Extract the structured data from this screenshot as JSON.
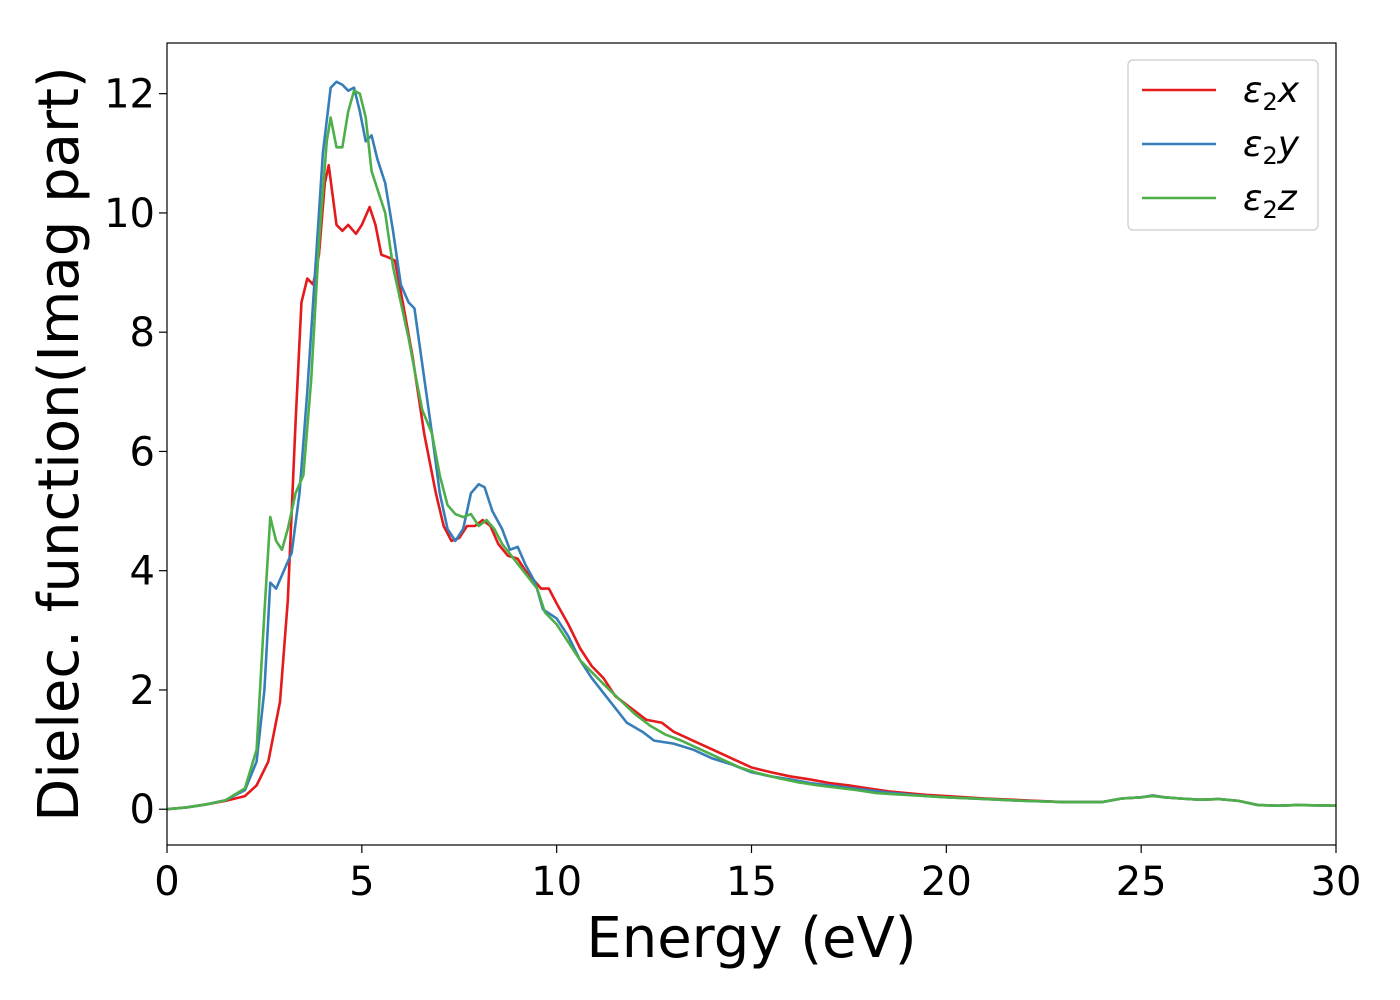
{
  "chart_data": {
    "type": "line",
    "title": "",
    "xlabel": "Energy (eV)",
    "ylabel": "Dielec. function(Imag part)",
    "xlim": [
      0,
      30
    ],
    "ylim": [
      -0.6,
      12.85
    ],
    "xticks": [
      0,
      5,
      10,
      15,
      20,
      25,
      30
    ],
    "xtick_labels": [
      "0",
      "5",
      "10",
      "15",
      "20",
      "25",
      "30"
    ],
    "yticks": [
      0,
      2,
      4,
      6,
      8,
      10,
      12
    ],
    "ytick_labels": [
      "0",
      "2",
      "4",
      "6",
      "8",
      "10",
      "12"
    ],
    "grid": false,
    "legend": {
      "position": "top-right",
      "entries": [
        {
          "symbol": "ε",
          "sub": "2",
          "comp": "x",
          "color": "#e41a1c"
        },
        {
          "symbol": "ε",
          "sub": "2",
          "comp": "y",
          "color": "#377eb8"
        },
        {
          "symbol": "ε",
          "sub": "2",
          "comp": "z",
          "color": "#4daf4a"
        }
      ]
    },
    "series": [
      {
        "color": "#e41a1c",
        "points": [
          [
            0,
            0
          ],
          [
            0.5,
            0.03
          ],
          [
            1,
            0.08
          ],
          [
            1.5,
            0.14
          ],
          [
            2,
            0.22
          ],
          [
            2.3,
            0.4
          ],
          [
            2.6,
            0.8
          ],
          [
            2.9,
            1.8
          ],
          [
            3.1,
            3.5
          ],
          [
            3.3,
            6.5
          ],
          [
            3.45,
            8.5
          ],
          [
            3.6,
            8.9
          ],
          [
            3.75,
            8.8
          ],
          [
            3.9,
            9.3
          ],
          [
            4.05,
            10.5
          ],
          [
            4.15,
            10.8
          ],
          [
            4.25,
            10.3
          ],
          [
            4.35,
            9.8
          ],
          [
            4.5,
            9.7
          ],
          [
            4.65,
            9.8
          ],
          [
            4.85,
            9.65
          ],
          [
            5.0,
            9.8
          ],
          [
            5.2,
            10.1
          ],
          [
            5.35,
            9.8
          ],
          [
            5.5,
            9.3
          ],
          [
            5.7,
            9.25
          ],
          [
            5.85,
            9.2
          ],
          [
            6.05,
            8.5
          ],
          [
            6.3,
            7.6
          ],
          [
            6.6,
            6.3
          ],
          [
            6.9,
            5.3
          ],
          [
            7.1,
            4.75
          ],
          [
            7.3,
            4.5
          ],
          [
            7.5,
            4.55
          ],
          [
            7.7,
            4.75
          ],
          [
            7.9,
            4.75
          ],
          [
            8.1,
            4.85
          ],
          [
            8.3,
            4.75
          ],
          [
            8.5,
            4.45
          ],
          [
            8.75,
            4.25
          ],
          [
            9.0,
            4.2
          ],
          [
            9.2,
            4.0
          ],
          [
            9.4,
            3.85
          ],
          [
            9.6,
            3.7
          ],
          [
            9.8,
            3.7
          ],
          [
            10.0,
            3.45
          ],
          [
            10.3,
            3.1
          ],
          [
            10.6,
            2.7
          ],
          [
            10.9,
            2.4
          ],
          [
            11.2,
            2.2
          ],
          [
            11.5,
            1.9
          ],
          [
            11.9,
            1.7
          ],
          [
            12.3,
            1.5
          ],
          [
            12.7,
            1.45
          ],
          [
            13.0,
            1.3
          ],
          [
            13.5,
            1.15
          ],
          [
            14.0,
            1.0
          ],
          [
            14.5,
            0.85
          ],
          [
            15.0,
            0.7
          ],
          [
            15.5,
            0.62
          ],
          [
            16.0,
            0.55
          ],
          [
            16.5,
            0.5
          ],
          [
            17.0,
            0.44
          ],
          [
            17.5,
            0.4
          ],
          [
            18.0,
            0.35
          ],
          [
            18.5,
            0.3
          ],
          [
            19.0,
            0.27
          ],
          [
            19.5,
            0.24
          ],
          [
            20.0,
            0.22
          ],
          [
            21.0,
            0.18
          ],
          [
            22.0,
            0.15
          ],
          [
            23.0,
            0.12
          ],
          [
            24.0,
            0.12
          ],
          [
            24.5,
            0.18
          ],
          [
            25.0,
            0.2
          ],
          [
            25.3,
            0.23
          ],
          [
            25.6,
            0.2
          ],
          [
            26.0,
            0.18
          ],
          [
            26.5,
            0.16
          ],
          [
            27.0,
            0.17
          ],
          [
            27.5,
            0.14
          ],
          [
            28.0,
            0.07
          ],
          [
            28.5,
            0.06
          ],
          [
            29.0,
            0.07
          ],
          [
            30.0,
            0.06
          ]
        ]
      },
      {
        "color": "#377eb8",
        "points": [
          [
            0,
            0
          ],
          [
            0.5,
            0.03
          ],
          [
            1,
            0.08
          ],
          [
            1.5,
            0.15
          ],
          [
            2,
            0.32
          ],
          [
            2.3,
            0.8
          ],
          [
            2.5,
            2.0
          ],
          [
            2.65,
            3.8
          ],
          [
            2.8,
            3.7
          ],
          [
            3.0,
            4.0
          ],
          [
            3.2,
            4.3
          ],
          [
            3.4,
            5.3
          ],
          [
            3.6,
            7.0
          ],
          [
            3.8,
            9.0
          ],
          [
            4.0,
            11.0
          ],
          [
            4.2,
            12.1
          ],
          [
            4.35,
            12.2
          ],
          [
            4.5,
            12.15
          ],
          [
            4.65,
            12.05
          ],
          [
            4.8,
            12.1
          ],
          [
            4.95,
            11.7
          ],
          [
            5.1,
            11.2
          ],
          [
            5.25,
            11.3
          ],
          [
            5.4,
            10.9
          ],
          [
            5.6,
            10.5
          ],
          [
            5.8,
            9.7
          ],
          [
            6.0,
            8.8
          ],
          [
            6.2,
            8.5
          ],
          [
            6.35,
            8.4
          ],
          [
            6.5,
            7.7
          ],
          [
            6.8,
            6.3
          ],
          [
            7.0,
            5.3
          ],
          [
            7.2,
            4.7
          ],
          [
            7.4,
            4.5
          ],
          [
            7.6,
            4.7
          ],
          [
            7.8,
            5.3
          ],
          [
            8.0,
            5.45
          ],
          [
            8.15,
            5.4
          ],
          [
            8.35,
            5.0
          ],
          [
            8.6,
            4.7
          ],
          [
            8.8,
            4.35
          ],
          [
            9.0,
            4.4
          ],
          [
            9.2,
            4.1
          ],
          [
            9.45,
            3.8
          ],
          [
            9.65,
            3.35
          ],
          [
            10.0,
            3.2
          ],
          [
            10.3,
            2.9
          ],
          [
            10.6,
            2.5
          ],
          [
            10.9,
            2.2
          ],
          [
            11.2,
            1.95
          ],
          [
            11.5,
            1.7
          ],
          [
            11.8,
            1.45
          ],
          [
            12.2,
            1.3
          ],
          [
            12.5,
            1.15
          ],
          [
            13.0,
            1.1
          ],
          [
            13.5,
            1.0
          ],
          [
            14.0,
            0.85
          ],
          [
            14.5,
            0.75
          ],
          [
            15.0,
            0.62
          ],
          [
            15.5,
            0.55
          ],
          [
            16.0,
            0.5
          ],
          [
            16.5,
            0.44
          ],
          [
            17.0,
            0.4
          ],
          [
            17.5,
            0.36
          ],
          [
            18.0,
            0.32
          ],
          [
            18.5,
            0.28
          ],
          [
            19.0,
            0.25
          ],
          [
            19.5,
            0.22
          ],
          [
            20.0,
            0.2
          ],
          [
            21.0,
            0.17
          ],
          [
            22.0,
            0.14
          ],
          [
            23.0,
            0.12
          ],
          [
            24.0,
            0.12
          ],
          [
            24.5,
            0.18
          ],
          [
            25.0,
            0.2
          ],
          [
            25.3,
            0.23
          ],
          [
            25.6,
            0.2
          ],
          [
            26.0,
            0.18
          ],
          [
            26.5,
            0.16
          ],
          [
            27.0,
            0.17
          ],
          [
            27.5,
            0.14
          ],
          [
            28.0,
            0.07
          ],
          [
            28.5,
            0.06
          ],
          [
            29.0,
            0.07
          ],
          [
            30.0,
            0.06
          ]
        ]
      },
      {
        "color": "#4daf4a",
        "points": [
          [
            0,
            0
          ],
          [
            0.5,
            0.03
          ],
          [
            1,
            0.08
          ],
          [
            1.5,
            0.15
          ],
          [
            2,
            0.35
          ],
          [
            2.3,
            1.0
          ],
          [
            2.5,
            3.3
          ],
          [
            2.65,
            4.9
          ],
          [
            2.8,
            4.5
          ],
          [
            2.95,
            4.35
          ],
          [
            3.1,
            4.7
          ],
          [
            3.3,
            5.3
          ],
          [
            3.5,
            5.6
          ],
          [
            3.7,
            7.2
          ],
          [
            3.9,
            9.5
          ],
          [
            4.1,
            11.2
          ],
          [
            4.2,
            11.6
          ],
          [
            4.35,
            11.1
          ],
          [
            4.5,
            11.1
          ],
          [
            4.65,
            11.7
          ],
          [
            4.8,
            12.05
          ],
          [
            4.95,
            12.0
          ],
          [
            5.1,
            11.6
          ],
          [
            5.25,
            10.7
          ],
          [
            5.4,
            10.4
          ],
          [
            5.6,
            10.0
          ],
          [
            5.8,
            9.1
          ],
          [
            6.0,
            8.5
          ],
          [
            6.2,
            7.9
          ],
          [
            6.4,
            7.2
          ],
          [
            6.55,
            6.7
          ],
          [
            6.8,
            6.3
          ],
          [
            7.0,
            5.6
          ],
          [
            7.2,
            5.1
          ],
          [
            7.4,
            4.95
          ],
          [
            7.6,
            4.9
          ],
          [
            7.8,
            4.95
          ],
          [
            8.0,
            4.75
          ],
          [
            8.2,
            4.85
          ],
          [
            8.4,
            4.7
          ],
          [
            8.6,
            4.45
          ],
          [
            8.9,
            4.2
          ],
          [
            9.2,
            3.95
          ],
          [
            9.5,
            3.7
          ],
          [
            9.7,
            3.3
          ],
          [
            10.0,
            3.1
          ],
          [
            10.3,
            2.8
          ],
          [
            10.6,
            2.5
          ],
          [
            10.9,
            2.3
          ],
          [
            11.2,
            2.1
          ],
          [
            11.6,
            1.85
          ],
          [
            12.0,
            1.6
          ],
          [
            12.4,
            1.4
          ],
          [
            12.8,
            1.25
          ],
          [
            13.2,
            1.15
          ],
          [
            13.7,
            1.0
          ],
          [
            14.2,
            0.85
          ],
          [
            14.7,
            0.7
          ],
          [
            15.2,
            0.6
          ],
          [
            15.7,
            0.52
          ],
          [
            16.2,
            0.45
          ],
          [
            16.7,
            0.4
          ],
          [
            17.2,
            0.36
          ],
          [
            17.7,
            0.32
          ],
          [
            18.2,
            0.27
          ],
          [
            18.7,
            0.25
          ],
          [
            19.2,
            0.23
          ],
          [
            20.0,
            0.2
          ],
          [
            21.0,
            0.17
          ],
          [
            22.0,
            0.14
          ],
          [
            23.0,
            0.12
          ],
          [
            24.0,
            0.12
          ],
          [
            24.5,
            0.18
          ],
          [
            25.0,
            0.2
          ],
          [
            25.3,
            0.22
          ],
          [
            25.6,
            0.2
          ],
          [
            26.0,
            0.18
          ],
          [
            26.5,
            0.16
          ],
          [
            27.0,
            0.17
          ],
          [
            27.5,
            0.14
          ],
          [
            28.0,
            0.07
          ],
          [
            28.5,
            0.06
          ],
          [
            29.0,
            0.07
          ],
          [
            30.0,
            0.06
          ]
        ]
      }
    ]
  }
}
